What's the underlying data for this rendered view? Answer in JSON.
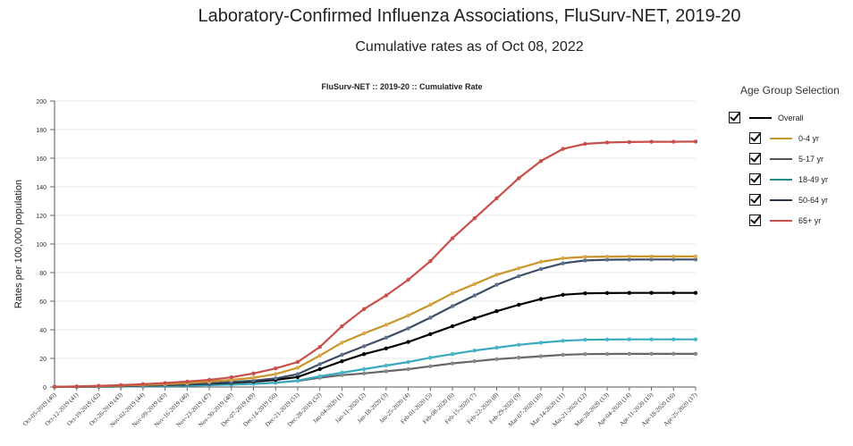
{
  "header": {
    "title": "Laboratory-Confirmed Influenza Associations, FluSurv-NET, 2019-20",
    "subtitle": "Cumulative rates as of Oct 08, 2022"
  },
  "legend": {
    "title": "Age Group Selection",
    "items": [
      {
        "label": "Overall",
        "color": "#000000",
        "checked": true
      },
      {
        "label": "0-4 yr",
        "color": "#c9942a",
        "checked": true
      },
      {
        "label": "5-17 yr",
        "color": "#555555",
        "checked": true
      },
      {
        "label": "18-49 yr",
        "color": "#1f8a8a",
        "checked": true
      },
      {
        "label": "50-64 yr",
        "color": "#2a3650",
        "checked": true
      },
      {
        "label": "65+ yr",
        "color": "#c9504a",
        "checked": true
      }
    ]
  },
  "chart_data": {
    "type": "line",
    "title": "FluSurv-NET :: 2019-20 :: Cumulative Rate",
    "xlabel": "",
    "ylabel": "Rates per 100,000 population",
    "ylim": [
      0,
      200
    ],
    "yticks": [
      0,
      20,
      40,
      60,
      80,
      100,
      120,
      140,
      160,
      180,
      200
    ],
    "grid": "horizontal",
    "categories": [
      "Oct-05-2019 (40)",
      "Oct-12-2019 (41)",
      "Oct-19-2019 (42)",
      "Oct-26-2019 (43)",
      "Nov-02-2019 (44)",
      "Nov-09-2019 (45)",
      "Nov-16-2019 (46)",
      "Nov-23-2019 (47)",
      "Nov-30-2019 (48)",
      "Dec-07-2019 (49)",
      "Dec-14-2019 (50)",
      "Dec-21-2019 (51)",
      "Dec-28-2019 (52)",
      "Jan-04-2020 (1)",
      "Jan-11-2020 (2)",
      "Jan-18-2020 (3)",
      "Jan-25-2020 (4)",
      "Feb-01-2020 (5)",
      "Feb-08-2020 (6)",
      "Feb-15-2020 (7)",
      "Feb-22-2020 (8)",
      "Feb-29-2020 (9)",
      "Mar-07-2020 (10)",
      "Mar-14-2020 (11)",
      "Mar-21-2020 (12)",
      "Mar-28-2020 (13)",
      "Apr-04-2020 (14)",
      "Apr-11-2020 (15)",
      "Apr-18-2020 (16)",
      "Apr-25-2020 (17)"
    ],
    "series": [
      {
        "name": "Overall",
        "color": "#000000",
        "marker": "#000000",
        "values": [
          0.1,
          0.2,
          0.4,
          0.7,
          1.0,
          1.3,
          1.8,
          2.3,
          3.0,
          3.8,
          5.0,
          7.0,
          12.5,
          18.0,
          23.0,
          27.0,
          31.5,
          37.0,
          42.5,
          48.0,
          53.0,
          57.5,
          61.5,
          64.5,
          65.5,
          65.7,
          65.8,
          65.8,
          65.8,
          65.8
        ]
      },
      {
        "name": "0-4 yr",
        "color": "#c9942a",
        "marker": "#d8a94a",
        "values": [
          0.1,
          0.3,
          0.6,
          1.0,
          1.5,
          2.0,
          2.8,
          3.8,
          5.0,
          6.5,
          9.0,
          13.5,
          22.0,
          31.0,
          37.5,
          43.5,
          50.0,
          57.5,
          65.5,
          72.0,
          78.5,
          83.0,
          87.5,
          90.0,
          91.0,
          91.2,
          91.3,
          91.3,
          91.3,
          91.3
        ]
      },
      {
        "name": "5-17 yr",
        "color": "#666666",
        "marker": "#888888",
        "values": [
          0.0,
          0.1,
          0.2,
          0.3,
          0.5,
          0.7,
          1.0,
          1.4,
          1.8,
          2.3,
          3.0,
          4.3,
          6.5,
          8.3,
          9.5,
          11.0,
          12.5,
          14.5,
          16.5,
          18.0,
          19.5,
          20.5,
          21.5,
          22.5,
          23.0,
          23.1,
          23.2,
          23.2,
          23.2,
          23.2
        ]
      },
      {
        "name": "18-49 yr",
        "color": "#3aa8bf",
        "marker": "#45b6cc",
        "values": [
          0.0,
          0.1,
          0.2,
          0.3,
          0.5,
          0.7,
          1.0,
          1.3,
          1.7,
          2.2,
          3.0,
          4.5,
          7.5,
          10.0,
          12.5,
          15.0,
          17.5,
          20.5,
          23.0,
          25.5,
          27.5,
          29.5,
          31.0,
          32.3,
          33.0,
          33.2,
          33.3,
          33.3,
          33.3,
          33.3
        ]
      },
      {
        "name": "50-64 yr",
        "color": "#3e4d63",
        "marker": "#5b7192",
        "values": [
          0.1,
          0.2,
          0.4,
          0.7,
          1.0,
          1.4,
          1.9,
          2.6,
          3.5,
          4.5,
          6.0,
          9.0,
          16.0,
          22.5,
          28.5,
          34.5,
          41.0,
          48.5,
          56.5,
          64.0,
          71.5,
          77.5,
          82.5,
          86.5,
          88.5,
          89.0,
          89.1,
          89.2,
          89.2,
          89.2
        ]
      },
      {
        "name": "65+ yr",
        "color": "#c9504a",
        "marker": "#c9504a",
        "values": [
          0.2,
          0.4,
          0.8,
          1.3,
          2.0,
          2.8,
          3.8,
          5.0,
          6.8,
          9.5,
          13.0,
          17.5,
          28.0,
          42.5,
          54.5,
          64.0,
          75.0,
          88.0,
          104.0,
          118.0,
          132.0,
          146.0,
          158.0,
          166.5,
          170.0,
          171.0,
          171.3,
          171.5,
          171.5,
          171.6
        ]
      }
    ]
  }
}
